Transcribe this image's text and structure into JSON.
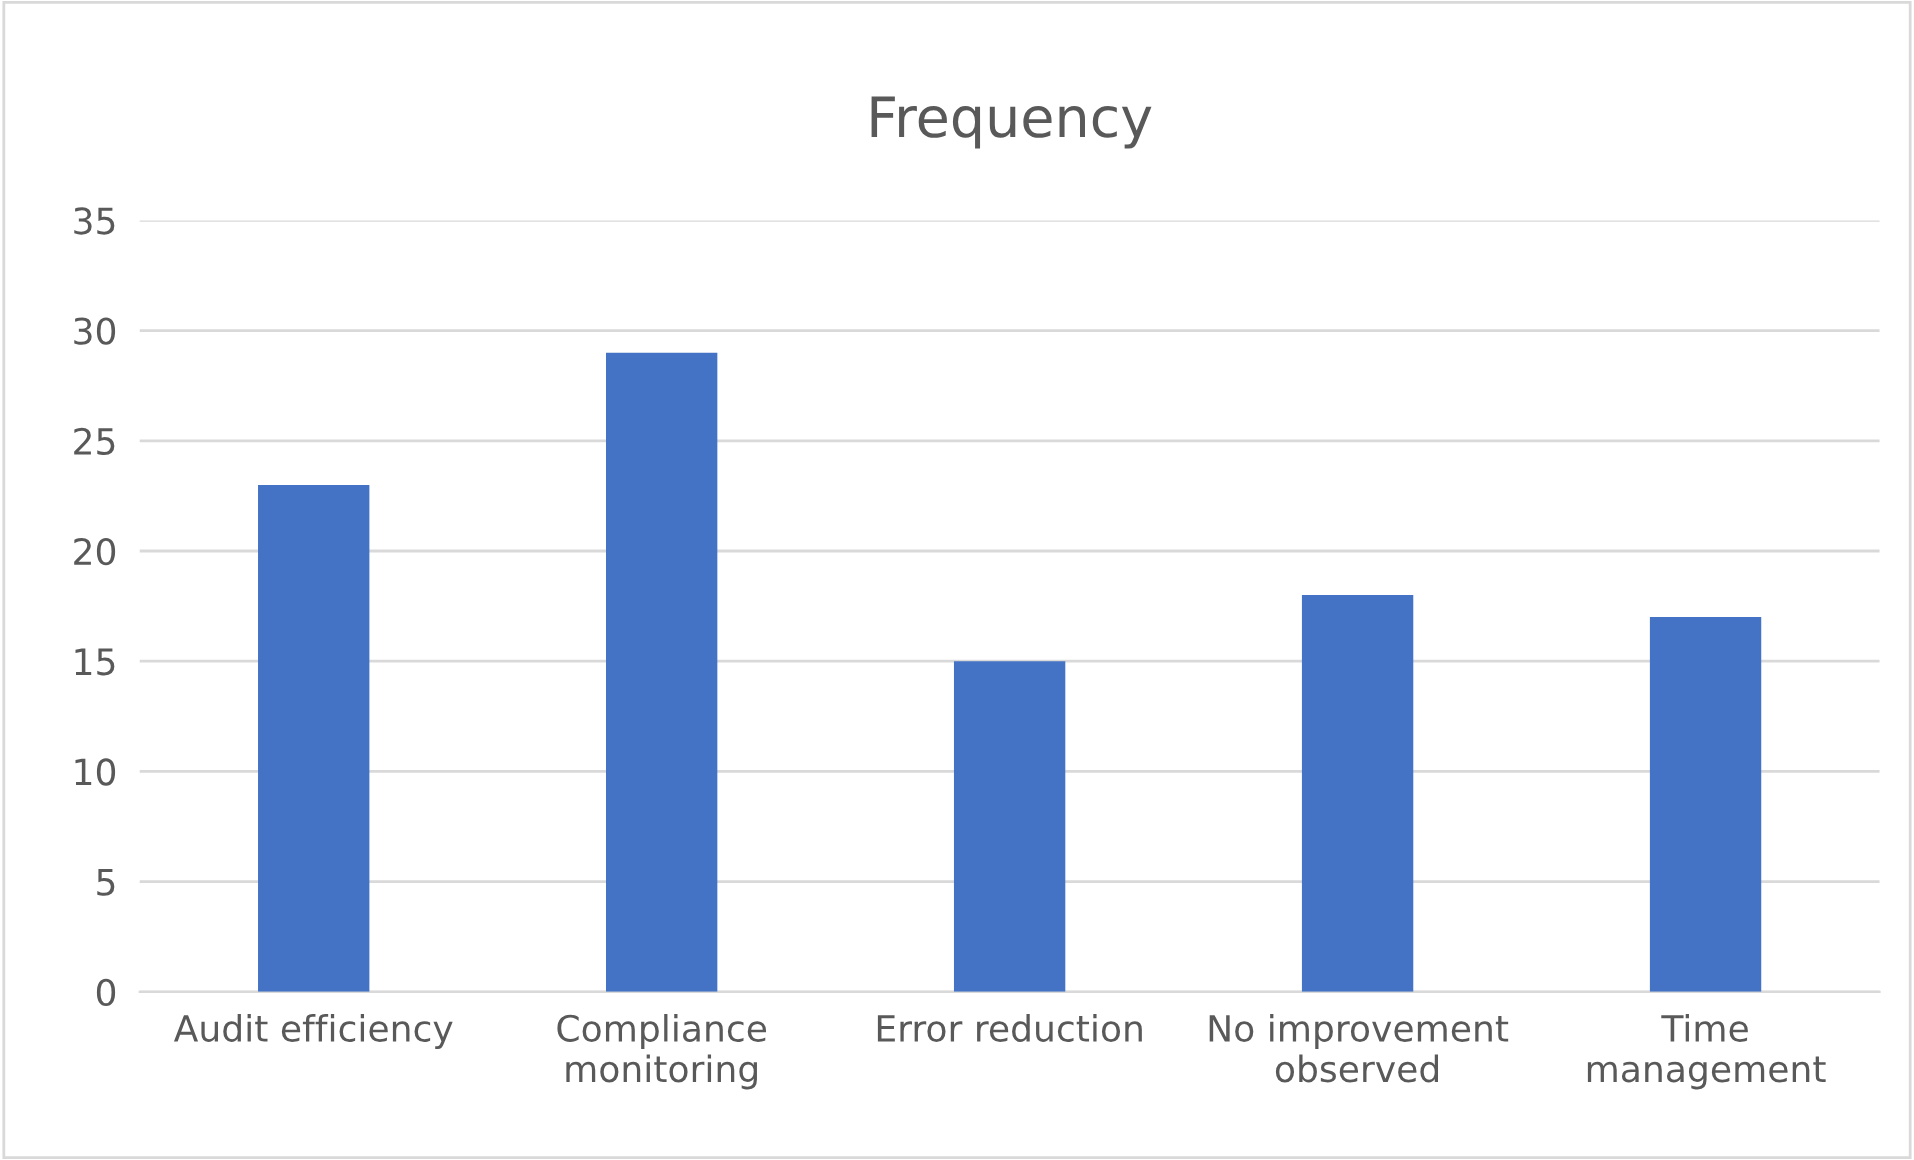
{
  "chart_data": {
    "type": "bar",
    "title": "Frequency",
    "categories": [
      "Audit efficiency",
      "Compliance\nmonitoring",
      "Error reduction",
      "No improvement\nobserved",
      "Time\nmanagement"
    ],
    "values": [
      23,
      29,
      15,
      18,
      17
    ],
    "color": "#4472c4",
    "ylim": [
      0,
      35
    ],
    "yticks": [
      0,
      5,
      10,
      15,
      20,
      25,
      30,
      35
    ],
    "grid": "y",
    "legend": false
  }
}
